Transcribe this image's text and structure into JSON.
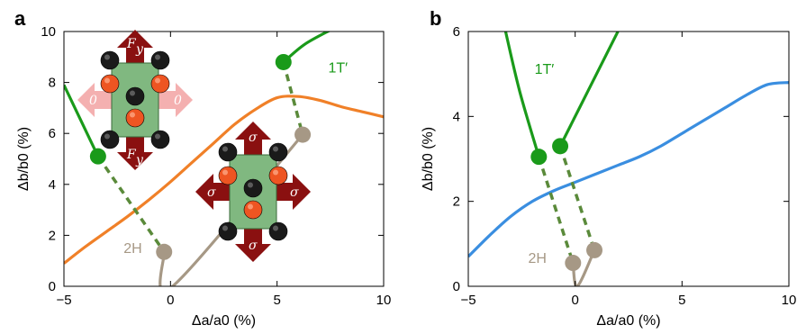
{
  "colors": {
    "green": "#1a9a1a",
    "green_dash": "#5a8a3a",
    "tan": "#a69885",
    "orange": "#f08028",
    "blue": "#3a8ee0",
    "dark_red": "#8a1010",
    "pink": "#f4b0b0",
    "box_green": "#80b880",
    "atom_black": "#1a1a1a",
    "atom_orange": "#ee5522"
  },
  "chart_data": [
    {
      "type": "line",
      "panel_label": "a",
      "xlabel": "Δa/a0 (%)",
      "ylabel": "Δb/b0 (%)",
      "xlim": [
        -5,
        10
      ],
      "ylim": [
        0,
        10
      ],
      "x_ticks": [
        -5,
        0,
        5,
        10
      ],
      "y_ticks": [
        0,
        2,
        4,
        6,
        8,
        10
      ],
      "x_tick_labels": [
        "−5",
        "0",
        "5",
        "10"
      ],
      "y_tick_labels": [
        "0",
        "2",
        "4",
        "6",
        "8",
        "10"
      ],
      "series": [
        {
          "role": "orange_curve",
          "color": "orange",
          "x": [
            -5,
            -4,
            -3,
            -2,
            -1,
            0,
            1,
            2,
            3,
            4,
            5,
            6,
            7,
            8,
            9,
            10
          ],
          "y": [
            0.9,
            1.55,
            2.15,
            2.75,
            3.4,
            4.1,
            4.85,
            5.6,
            6.35,
            6.95,
            7.4,
            7.45,
            7.3,
            7.05,
            6.85,
            6.65
          ]
        },
        {
          "role": "1T_left_branch",
          "color": "green",
          "x": [
            -5,
            -3.4
          ],
          "y": [
            7.9,
            5.1
          ]
        },
        {
          "role": "1T_right_branch",
          "color": "green",
          "x": [
            5.3,
            6.3,
            7.6
          ],
          "y": [
            8.8,
            9.5,
            10.1
          ]
        },
        {
          "role": "2H_branch",
          "color": "tan",
          "x": [
            -0.3,
            0.1,
            6.2
          ],
          "y": [
            1.35,
            0.0,
            5.95
          ]
        },
        {
          "role": "transition_left",
          "style": "dashed",
          "color": "green_dash",
          "x": [
            -3.4,
            -0.3
          ],
          "y": [
            5.1,
            1.35
          ]
        },
        {
          "role": "transition_right",
          "style": "dashed",
          "color": "green_dash",
          "x": [
            5.3,
            6.2
          ],
          "y": [
            8.8,
            5.95
          ]
        }
      ],
      "points": [
        {
          "x": -3.4,
          "y": 5.1,
          "color": "green"
        },
        {
          "x": 5.3,
          "y": 8.8,
          "color": "green"
        },
        {
          "x": -0.3,
          "y": 1.35,
          "color": "tan"
        },
        {
          "x": 6.2,
          "y": 5.95,
          "color": "tan"
        }
      ],
      "annotations": [
        {
          "text": "1T′",
          "x": 7.4,
          "y": 8.4,
          "color": "green"
        },
        {
          "text": "2H",
          "x": -2.2,
          "y": 1.3,
          "color": "tan"
        }
      ],
      "insets": [
        {
          "role": "uniaxial",
          "top_label": "F",
          "top_sub": "y",
          "bottom_label": "F",
          "bottom_sub": "y",
          "side_label": "0"
        },
        {
          "role": "biaxial",
          "label": "σ"
        }
      ]
    },
    {
      "type": "line",
      "panel_label": "b",
      "xlabel": "Δa/a0 (%)",
      "ylabel": "Δb/b0 (%)",
      "xlim": [
        -5,
        10
      ],
      "ylim": [
        0,
        6
      ],
      "x_ticks": [
        -5,
        0,
        5,
        10
      ],
      "y_ticks": [
        0,
        2,
        4,
        6
      ],
      "x_tick_labels": [
        "−5",
        "0",
        "5",
        "10"
      ],
      "y_tick_labels": [
        "0",
        "2",
        "4",
        "6"
      ],
      "series": [
        {
          "role": "blue_curve",
          "color": "blue",
          "x": [
            -5,
            -4,
            -3,
            -2,
            -1,
            0,
            1,
            2,
            3,
            4,
            5,
            6,
            7,
            8,
            9,
            10
          ],
          "y": [
            0.7,
            1.2,
            1.65,
            2.0,
            2.25,
            2.45,
            2.65,
            2.85,
            3.05,
            3.3,
            3.6,
            3.9,
            4.2,
            4.5,
            4.75,
            4.8
          ]
        },
        {
          "role": "1T_left_branch",
          "color": "green",
          "x": [
            -3.3,
            -2.6,
            -1.7
          ],
          "y": [
            6.1,
            4.6,
            3.05
          ]
        },
        {
          "role": "1T_right_branch",
          "color": "green",
          "x": [
            -0.7,
            0.6,
            2.1
          ],
          "y": [
            3.3,
            4.6,
            6.1
          ]
        },
        {
          "role": "2H_branch",
          "color": "tan",
          "x": [
            -0.1,
            0.1,
            0.9
          ],
          "y": [
            0.55,
            0.0,
            0.85
          ]
        },
        {
          "role": "transition_left",
          "style": "dashed",
          "color": "green_dash",
          "x": [
            -1.7,
            -0.1
          ],
          "y": [
            3.05,
            0.55
          ]
        },
        {
          "role": "transition_right",
          "style": "dashed",
          "color": "green_dash",
          "x": [
            -0.7,
            0.9
          ],
          "y": [
            3.3,
            0.85
          ]
        }
      ],
      "points": [
        {
          "x": -1.7,
          "y": 3.05,
          "color": "green"
        },
        {
          "x": -0.7,
          "y": 3.3,
          "color": "green"
        },
        {
          "x": -0.1,
          "y": 0.55,
          "color": "tan"
        },
        {
          "x": 0.9,
          "y": 0.85,
          "color": "tan"
        }
      ],
      "annotations": [
        {
          "text": "1T′",
          "x": -1.9,
          "y": 5.0,
          "color": "green"
        },
        {
          "text": "2H",
          "x": -2.2,
          "y": 0.55,
          "color": "tan"
        }
      ]
    }
  ]
}
